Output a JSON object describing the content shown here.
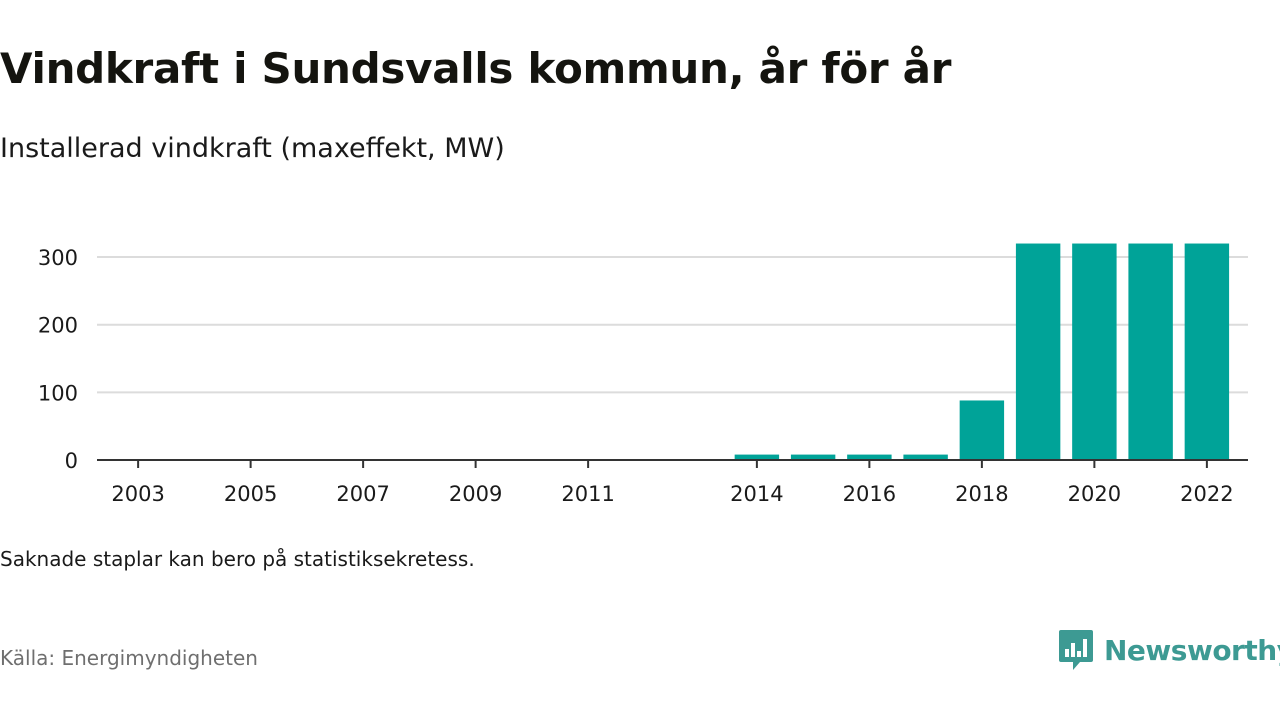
{
  "header": {
    "title": "Vindkraft i Sundsvalls kommun, år för år",
    "subtitle": "Installerad vindkraft (maxeffekt, MW)"
  },
  "footer": {
    "note": "Saknade staplar kan bero på statistiksekretess.",
    "source": "Källa: Energimyndigheten",
    "logo_text": "Newsworthy",
    "logo_icon": "bar-chart-speech-bubble-icon"
  },
  "colors": {
    "bar": "#00a398",
    "grid": "#dcdcdc",
    "axis": "#333333",
    "logo": "#3d9a93"
  },
  "chart_data": {
    "type": "bar",
    "categories": [
      "2003",
      "2004",
      "2005",
      "2006",
      "2007",
      "2008",
      "2009",
      "2010",
      "2011",
      "2012",
      "2013",
      "2014",
      "2015",
      "2016",
      "2017",
      "2018",
      "2019",
      "2020",
      "2021",
      "2022"
    ],
    "values": [
      null,
      null,
      null,
      null,
      null,
      null,
      null,
      null,
      null,
      null,
      null,
      8,
      8,
      8,
      8,
      88,
      320,
      320,
      320,
      320
    ],
    "tick_labels": [
      "2003",
      "2005",
      "2007",
      "2009",
      "2011",
      "2014",
      "2016",
      "2018",
      "2020",
      "2022"
    ],
    "y_ticks": [
      0,
      100,
      200,
      300
    ],
    "ylim": [
      0,
      340
    ],
    "grid": true,
    "legend": "none"
  }
}
